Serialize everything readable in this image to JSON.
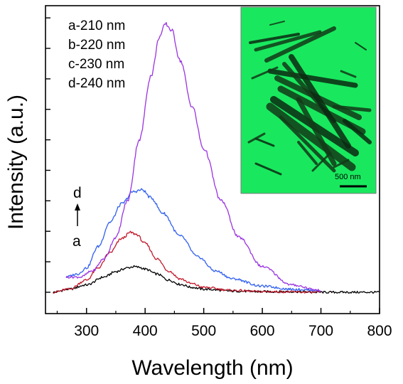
{
  "chart_data": {
    "type": "line",
    "xlabel": "Wavelength (nm)",
    "ylabel": "Intensity (a.u.)",
    "xlim": [
      230,
      800
    ],
    "ylim": [
      -0.35,
      4.7
    ],
    "x_ticks": [
      300,
      400,
      500,
      600,
      700,
      800
    ],
    "y_ticks_labeled": false,
    "grid": false,
    "legend_position": "top-left",
    "legend": [
      "a-210 nm",
      "b-220 nm",
      "c-230 nm",
      "d-240 nm"
    ],
    "series": [
      {
        "name": "a-210 nm",
        "color": "#000000",
        "x": [
          243,
          270,
          300,
          330,
          350,
          370,
          380,
          390,
          400,
          420,
          440,
          460,
          480,
          500,
          550,
          600,
          650,
          700,
          750,
          800
        ],
        "y": [
          0.0,
          0.05,
          0.12,
          0.25,
          0.34,
          0.4,
          0.42,
          0.41,
          0.38,
          0.3,
          0.2,
          0.13,
          0.08,
          0.05,
          0.02,
          0.01,
          0.01,
          0.0,
          0.0,
          0.0
        ]
      },
      {
        "name": "b-220 nm",
        "color": "#c0182a",
        "x": [
          243,
          270,
          300,
          320,
          340,
          360,
          375,
          385,
          400,
          420,
          440,
          460,
          480,
          500,
          550,
          600,
          700
        ],
        "y": [
          0.0,
          0.05,
          0.2,
          0.4,
          0.65,
          0.88,
          0.98,
          0.95,
          0.8,
          0.55,
          0.35,
          0.22,
          0.14,
          0.08,
          0.03,
          0.01,
          0.0
        ]
      },
      {
        "name": "c-230 nm",
        "color": "#2f5ff0",
        "x": [
          265,
          285,
          300,
          320,
          340,
          360,
          380,
          395,
          410,
          430,
          460,
          490,
          520,
          550,
          600,
          650,
          700
        ],
        "y": [
          0.25,
          0.3,
          0.4,
          0.75,
          1.15,
          1.45,
          1.65,
          1.68,
          1.55,
          1.3,
          0.92,
          0.58,
          0.35,
          0.22,
          0.1,
          0.05,
          0.03
        ]
      },
      {
        "name": "d-240 nm",
        "color": "#9a33e0",
        "x": [
          265,
          290,
          310,
          330,
          350,
          370,
          390,
          410,
          425,
          435,
          445,
          460,
          480,
          500,
          530,
          560,
          600,
          650,
          700
        ],
        "y": [
          0.25,
          0.25,
          0.35,
          0.55,
          0.9,
          1.5,
          2.5,
          3.55,
          4.2,
          4.4,
          4.3,
          3.8,
          3.05,
          2.35,
          1.5,
          0.9,
          0.42,
          0.12,
          0.03
        ]
      }
    ],
    "annotations": {
      "top_letter": "d",
      "bottom_letter": "a"
    }
  },
  "inset": {
    "scale_bar_label": "500 nm",
    "background_color": "#19e85e"
  }
}
